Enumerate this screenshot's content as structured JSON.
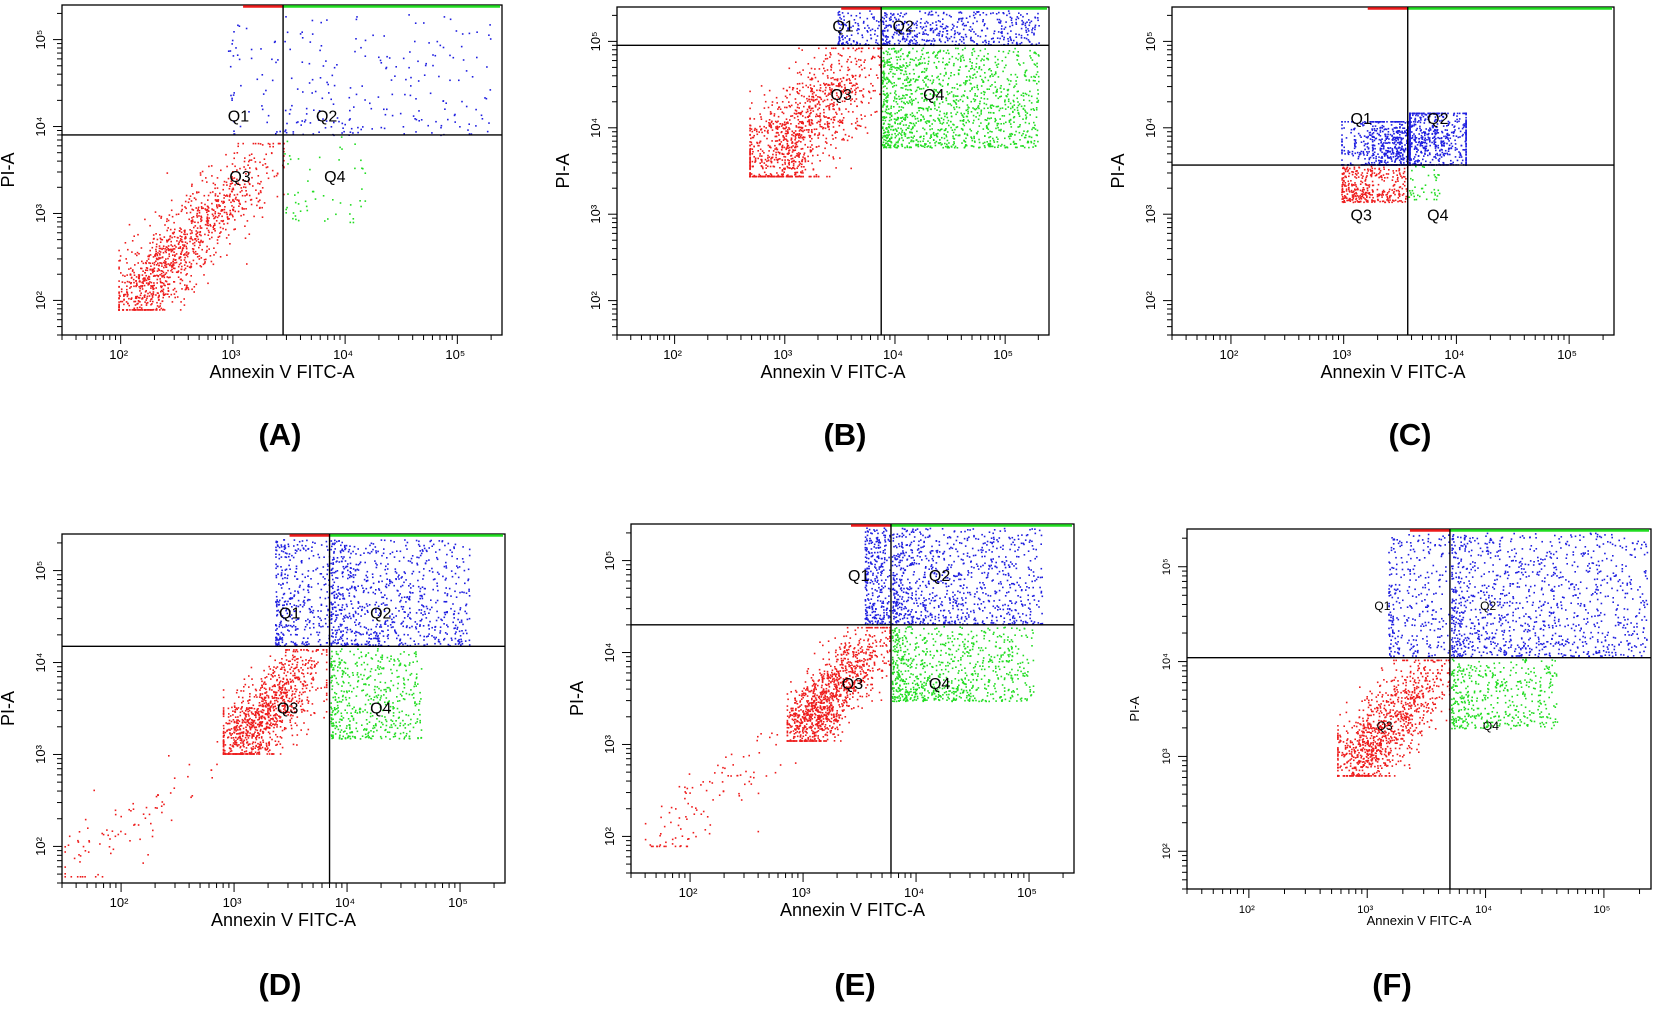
{
  "figure": {
    "colors": {
      "q1": "#1f1fe0",
      "q2": "#1f1fe0",
      "q3": "#ee1c1c",
      "q4": "#22dd22",
      "frame": "#000000"
    }
  },
  "chart_data": [
    {
      "id": "A",
      "panel_label": "(A)",
      "type": "scatter",
      "xlabel": "Annexin V FITC-A",
      "ylabel": "PI-A",
      "xscale": "log",
      "yscale": "log",
      "xlim": [
        30,
        250000
      ],
      "ylim": [
        40,
        250000
      ],
      "x_ticks": [
        {
          "value": 100,
          "label": "10²"
        },
        {
          "value": 1000,
          "label": "10³"
        },
        {
          "value": 10000,
          "label": "10⁴"
        },
        {
          "value": 100000,
          "label": "10⁵"
        }
      ],
      "y_ticks": [
        {
          "value": 100,
          "label": "10²"
        },
        {
          "value": 1000,
          "label": "10³"
        },
        {
          "value": 10000,
          "label": "10⁴"
        },
        {
          "value": 100000,
          "label": "10⁵"
        }
      ],
      "gate": {
        "x": 2800,
        "y": 8000
      },
      "quadrant_labels": [
        {
          "name": "Q1",
          "label": "Q1",
          "x": 900,
          "y": 11500
        },
        {
          "name": "Q2",
          "label": "Q2",
          "x": 5500,
          "y": 11500
        },
        {
          "name": "Q3",
          "label": "Q3",
          "x": 930,
          "y": 2300
        },
        {
          "name": "Q4",
          "label": "Q4",
          "x": 6500,
          "y": 2300
        }
      ],
      "series": [
        {
          "name": "Q3",
          "color": "#ee1c1c",
          "n": 1100,
          "dist": "diag",
          "x": [
            120,
            2800
          ],
          "y": [
            100,
            6500
          ],
          "spread": 0.22
        },
        {
          "name": "Q1",
          "color": "#1f1fe0",
          "n": 45,
          "dist": "box",
          "x": [
            900,
            2750
          ],
          "y": [
            8100,
            150000
          ]
        },
        {
          "name": "Q2",
          "color": "#1f1fe0",
          "n": 210,
          "dist": "box",
          "x": [
            2850,
            200000
          ],
          "y": [
            8100,
            200000
          ]
        },
        {
          "name": "Q4",
          "color": "#22dd22",
          "n": 55,
          "dist": "box",
          "x": [
            2850,
            15000
          ],
          "y": [
            800,
            7800
          ]
        }
      ]
    },
    {
      "id": "B",
      "panel_label": "(B)",
      "type": "scatter",
      "xlabel": "Annexin V FITC-A",
      "ylabel": "PI-A",
      "xscale": "log",
      "yscale": "log",
      "xlim": [
        30,
        250000
      ],
      "ylim": [
        40,
        250000
      ],
      "x_ticks": [
        {
          "value": 100,
          "label": "10²"
        },
        {
          "value": 1000,
          "label": "10³"
        },
        {
          "value": 10000,
          "label": "10⁴"
        },
        {
          "value": 100000,
          "label": "10⁵"
        }
      ],
      "y_ticks": [
        {
          "value": 100,
          "label": "10²"
        },
        {
          "value": 1000,
          "label": "10³"
        },
        {
          "value": 10000,
          "label": "10⁴"
        },
        {
          "value": 100000,
          "label": "10⁵"
        }
      ],
      "gate": {
        "x": 7500,
        "y": 90000
      },
      "quadrant_labels": [
        {
          "name": "Q1",
          "label": "Q1",
          "x": 2700,
          "y": 130000
        },
        {
          "name": "Q2",
          "label": "Q2",
          "x": 9500,
          "y": 130000
        },
        {
          "name": "Q3",
          "label": "Q3",
          "x": 2600,
          "y": 21000
        },
        {
          "name": "Q4",
          "label": "Q4",
          "x": 18000,
          "y": 21000
        }
      ],
      "series": [
        {
          "name": "Q3",
          "color": "#ee1c1c",
          "n": 1100,
          "dist": "diag",
          "x": [
            600,
            7400
          ],
          "y": [
            3500,
            85000
          ],
          "spread": 0.28
        },
        {
          "name": "Q4",
          "color": "#22dd22",
          "n": 1300,
          "dist": "box",
          "x": [
            7600,
            200000
          ],
          "y": [
            6000,
            85000
          ]
        },
        {
          "name": "Q2",
          "color": "#1f1fe0",
          "n": 450,
          "dist": "box",
          "x": [
            7600,
            200000
          ],
          "y": [
            92000,
            230000
          ]
        },
        {
          "name": "Q1",
          "color": "#1f1fe0",
          "n": 120,
          "dist": "box",
          "x": [
            3000,
            7400
          ],
          "y": [
            92000,
            230000
          ]
        }
      ]
    },
    {
      "id": "C",
      "panel_label": "(C)",
      "type": "scatter",
      "xlabel": "Annexin V FITC-A",
      "ylabel": "PI-A",
      "xscale": "log",
      "yscale": "log",
      "xlim": [
        30,
        250000
      ],
      "ylim": [
        40,
        250000
      ],
      "x_ticks": [
        {
          "value": 100,
          "label": "10²"
        },
        {
          "value": 1000,
          "label": "10³"
        },
        {
          "value": 10000,
          "label": "10⁴"
        },
        {
          "value": 100000,
          "label": "10⁵"
        }
      ],
      "y_ticks": [
        {
          "value": 100,
          "label": "10²"
        },
        {
          "value": 1000,
          "label": "10³"
        },
        {
          "value": 10000,
          "label": "10⁴"
        },
        {
          "value": 100000,
          "label": "10⁵"
        }
      ],
      "gate": {
        "x": 3700,
        "y": 3700
      },
      "quadrant_labels": [
        {
          "name": "Q1",
          "label": "Q1",
          "x": 1150,
          "y": 11000
        },
        {
          "name": "Q2",
          "label": "Q2",
          "x": 5500,
          "y": 11000
        },
        {
          "name": "Q3",
          "label": "Q3",
          "x": 1150,
          "y": 850
        },
        {
          "name": "Q4",
          "label": "Q4",
          "x": 5500,
          "y": 850
        }
      ],
      "series": [
        {
          "name": "Q2",
          "color": "#1f1fe0",
          "n": 900,
          "dist": "blob",
          "x": [
            3800,
            12000
          ],
          "y": [
            3800,
            15000
          ],
          "cx": 4500,
          "cy": 8000,
          "sx": 0.3,
          "sy": 0.24
        },
        {
          "name": "Q1",
          "color": "#1f1fe0",
          "n": 700,
          "dist": "blob",
          "x": [
            950,
            3650
          ],
          "y": [
            3800,
            12000
          ],
          "cx": 2600,
          "cy": 6000,
          "sx": 0.22,
          "sy": 0.2
        },
        {
          "name": "Q3",
          "color": "#ee1c1c",
          "n": 350,
          "dist": "box",
          "x": [
            950,
            3650
          ],
          "y": [
            1400,
            3650
          ]
        },
        {
          "name": "Q4",
          "color": "#22dd22",
          "n": 40,
          "dist": "box",
          "x": [
            3750,
            7000
          ],
          "y": [
            1500,
            3650
          ]
        }
      ]
    },
    {
      "id": "D",
      "panel_label": "(D)",
      "type": "scatter",
      "xlabel": "Annexin V FITC-A",
      "ylabel": "PI-A",
      "xscale": "log",
      "yscale": "log",
      "xlim": [
        30,
        250000
      ],
      "ylim": [
        40,
        250000
      ],
      "x_ticks": [
        {
          "value": 100,
          "label": "10²"
        },
        {
          "value": 1000,
          "label": "10³"
        },
        {
          "value": 10000,
          "label": "10⁴"
        },
        {
          "value": 100000,
          "label": "10⁵"
        }
      ],
      "y_ticks": [
        {
          "value": 100,
          "label": "10²"
        },
        {
          "value": 1000,
          "label": "10³"
        },
        {
          "value": 10000,
          "label": "10⁴"
        },
        {
          "value": 100000,
          "label": "10⁵"
        }
      ],
      "gate": {
        "x": 7000,
        "y": 15000
      },
      "quadrant_labels": [
        {
          "name": "Q1",
          "label": "Q1",
          "x": 2500,
          "y": 30000
        },
        {
          "name": "Q2",
          "label": "Q2",
          "x": 16000,
          "y": 30000
        },
        {
          "name": "Q3",
          "label": "Q3",
          "x": 2400,
          "y": 2800
        },
        {
          "name": "Q4",
          "label": "Q4",
          "x": 16000,
          "y": 2800
        }
      ],
      "series": [
        {
          "name": "Q3",
          "color": "#ee1c1c",
          "n": 1000,
          "dist": "diag",
          "x": [
            1000,
            6500
          ],
          "y": [
            1300,
            14000
          ],
          "spread": 0.2
        },
        {
          "name": "Q3-tail",
          "color": "#ee1c1c",
          "n": 90,
          "dist": "diag",
          "x": [
            35,
            1000
          ],
          "y": [
            60,
            1400
          ],
          "spread": 0.2
        },
        {
          "name": "Q1",
          "color": "#1f1fe0",
          "n": 350,
          "dist": "box",
          "x": [
            2300,
            6900
          ],
          "y": [
            15500,
            220000
          ]
        },
        {
          "name": "Q2",
          "color": "#1f1fe0",
          "n": 800,
          "dist": "box",
          "x": [
            7100,
            120000
          ],
          "y": [
            15500,
            220000
          ]
        },
        {
          "name": "Q4",
          "color": "#22dd22",
          "n": 500,
          "dist": "box",
          "x": [
            7100,
            45000
          ],
          "y": [
            1500,
            14500
          ]
        }
      ]
    },
    {
      "id": "E",
      "panel_label": "(E)",
      "type": "scatter",
      "xlabel": "Annexin V FITC-A",
      "ylabel": "PI-A",
      "xscale": "log",
      "yscale": "log",
      "xlim": [
        30,
        250000
      ],
      "ylim": [
        40,
        250000
      ],
      "x_ticks": [
        {
          "value": 100,
          "label": "10²"
        },
        {
          "value": 1000,
          "label": "10³"
        },
        {
          "value": 10000,
          "label": "10⁴"
        },
        {
          "value": 100000,
          "label": "10⁵"
        }
      ],
      "y_ticks": [
        {
          "value": 100,
          "label": "10²"
        },
        {
          "value": 1000,
          "label": "10³"
        },
        {
          "value": 10000,
          "label": "10⁴"
        },
        {
          "value": 100000,
          "label": "10⁵"
        }
      ],
      "gate": {
        "x": 6000,
        "y": 20000
      },
      "quadrant_labels": [
        {
          "name": "Q1",
          "label": "Q1",
          "x": 2500,
          "y": 60000
        },
        {
          "name": "Q2",
          "label": "Q2",
          "x": 13000,
          "y": 60000
        },
        {
          "name": "Q3",
          "label": "Q3",
          "x": 2200,
          "y": 4000
        },
        {
          "name": "Q4",
          "label": "Q4",
          "x": 13000,
          "y": 4000
        }
      ],
      "series": [
        {
          "name": "Q3",
          "color": "#ee1c1c",
          "n": 1100,
          "dist": "diag",
          "x": [
            900,
            5800
          ],
          "y": [
            1400,
            19000
          ],
          "spread": 0.18
        },
        {
          "name": "Q3-tail",
          "color": "#ee1c1c",
          "n": 110,
          "dist": "diag",
          "x": [
            50,
            900
          ],
          "y": [
            100,
            1500
          ],
          "spread": 0.2
        },
        {
          "name": "Q1",
          "color": "#1f1fe0",
          "n": 300,
          "dist": "box",
          "x": [
            3500,
            5900
          ],
          "y": [
            20500,
            230000
          ]
        },
        {
          "name": "Q2",
          "color": "#1f1fe0",
          "n": 900,
          "dist": "box",
          "x": [
            6100,
            130000
          ],
          "y": [
            20500,
            230000
          ]
        },
        {
          "name": "Q4",
          "color": "#22dd22",
          "n": 800,
          "dist": "box",
          "x": [
            6100,
            110000
          ],
          "y": [
            3000,
            19500
          ]
        }
      ]
    },
    {
      "id": "F",
      "panel_label": "(F)",
      "type": "scatter",
      "xlabel": "Annexin V FITC-A",
      "ylabel": "PI-A",
      "xscale": "log",
      "yscale": "log",
      "xlim": [
        30,
        250000
      ],
      "ylim": [
        40,
        250000
      ],
      "x_ticks": [
        {
          "value": 100,
          "label": "10²"
        },
        {
          "value": 1000,
          "label": "10³"
        },
        {
          "value": 10000,
          "label": "10⁴"
        },
        {
          "value": 100000,
          "label": "10⁵"
        }
      ],
      "y_ticks": [
        {
          "value": 100,
          "label": "10²"
        },
        {
          "value": 1000,
          "label": "10³"
        },
        {
          "value": 10000,
          "label": "10⁴"
        },
        {
          "value": 100000,
          "label": "10⁵"
        }
      ],
      "gate": {
        "x": 5000,
        "y": 11000
      },
      "quadrant_labels": [
        {
          "name": "Q1",
          "label": "Q1",
          "x": 1150,
          "y": 35000
        },
        {
          "name": "Q2",
          "label": "Q2",
          "x": 9000,
          "y": 35000
        },
        {
          "name": "Q3",
          "label": "Q3",
          "x": 1200,
          "y": 1900
        },
        {
          "name": "Q4",
          "label": "Q4",
          "x": 9500,
          "y": 1900
        }
      ],
      "series": [
        {
          "name": "Q3",
          "color": "#ee1c1c",
          "n": 1000,
          "dist": "diag",
          "x": [
            700,
            4900
          ],
          "y": [
            800,
            10500
          ],
          "spread": 0.2
        },
        {
          "name": "Q1",
          "color": "#1f1fe0",
          "n": 300,
          "dist": "box",
          "x": [
            1500,
            4900
          ],
          "y": [
            11500,
            230000
          ]
        },
        {
          "name": "Q2",
          "color": "#1f1fe0",
          "n": 1100,
          "dist": "box",
          "x": [
            5100,
            230000
          ],
          "y": [
            11500,
            230000
          ]
        },
        {
          "name": "Q4",
          "color": "#22dd22",
          "n": 450,
          "dist": "box",
          "x": [
            5100,
            40000
          ],
          "y": [
            2000,
            10800
          ]
        }
      ]
    }
  ]
}
